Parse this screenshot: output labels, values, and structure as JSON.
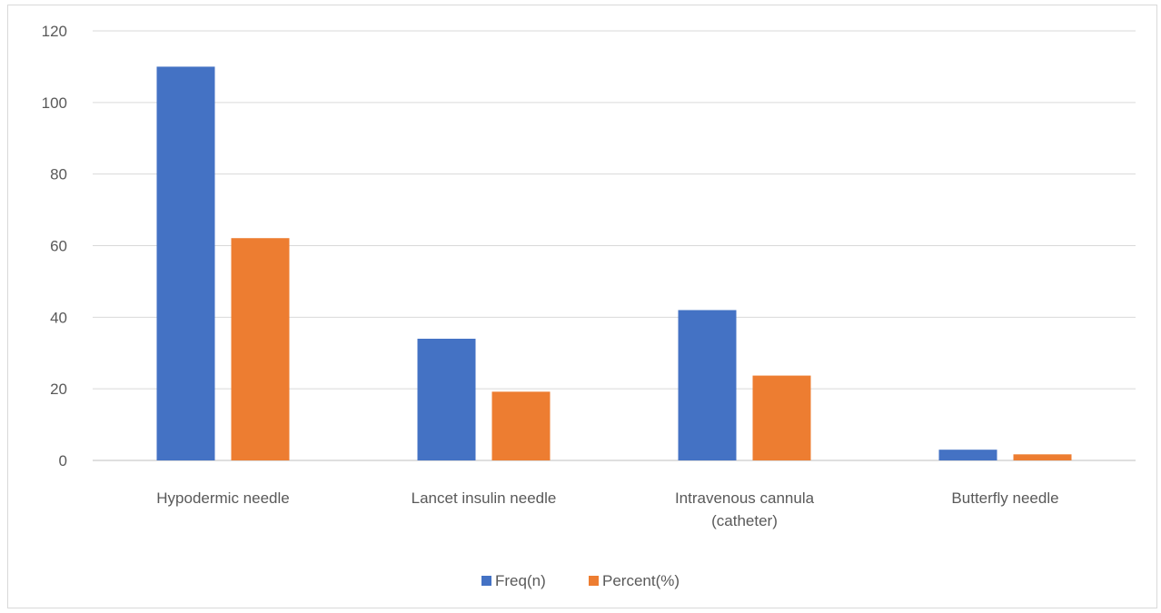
{
  "chart_data": {
    "type": "bar",
    "categories": [
      [
        "Hypodermic needle"
      ],
      [
        "Lancet insulin needle"
      ],
      [
        "Intravenous cannula",
        "(catheter)"
      ],
      [
        "Butterfly needle"
      ]
    ],
    "series": [
      {
        "name": "Freq(n)",
        "color": "#4472C4",
        "values": [
          110,
          34,
          42,
          3
        ]
      },
      {
        "name": "Percent(%)",
        "color": "#ED7D31",
        "values": [
          62.1,
          19.2,
          23.7,
          1.7
        ]
      }
    ],
    "ylim": [
      0,
      120
    ],
    "yticks": [
      "0",
      "20",
      "40",
      "60",
      "80",
      "100",
      "120"
    ],
    "grid": true,
    "legend": "bottom-center"
  }
}
